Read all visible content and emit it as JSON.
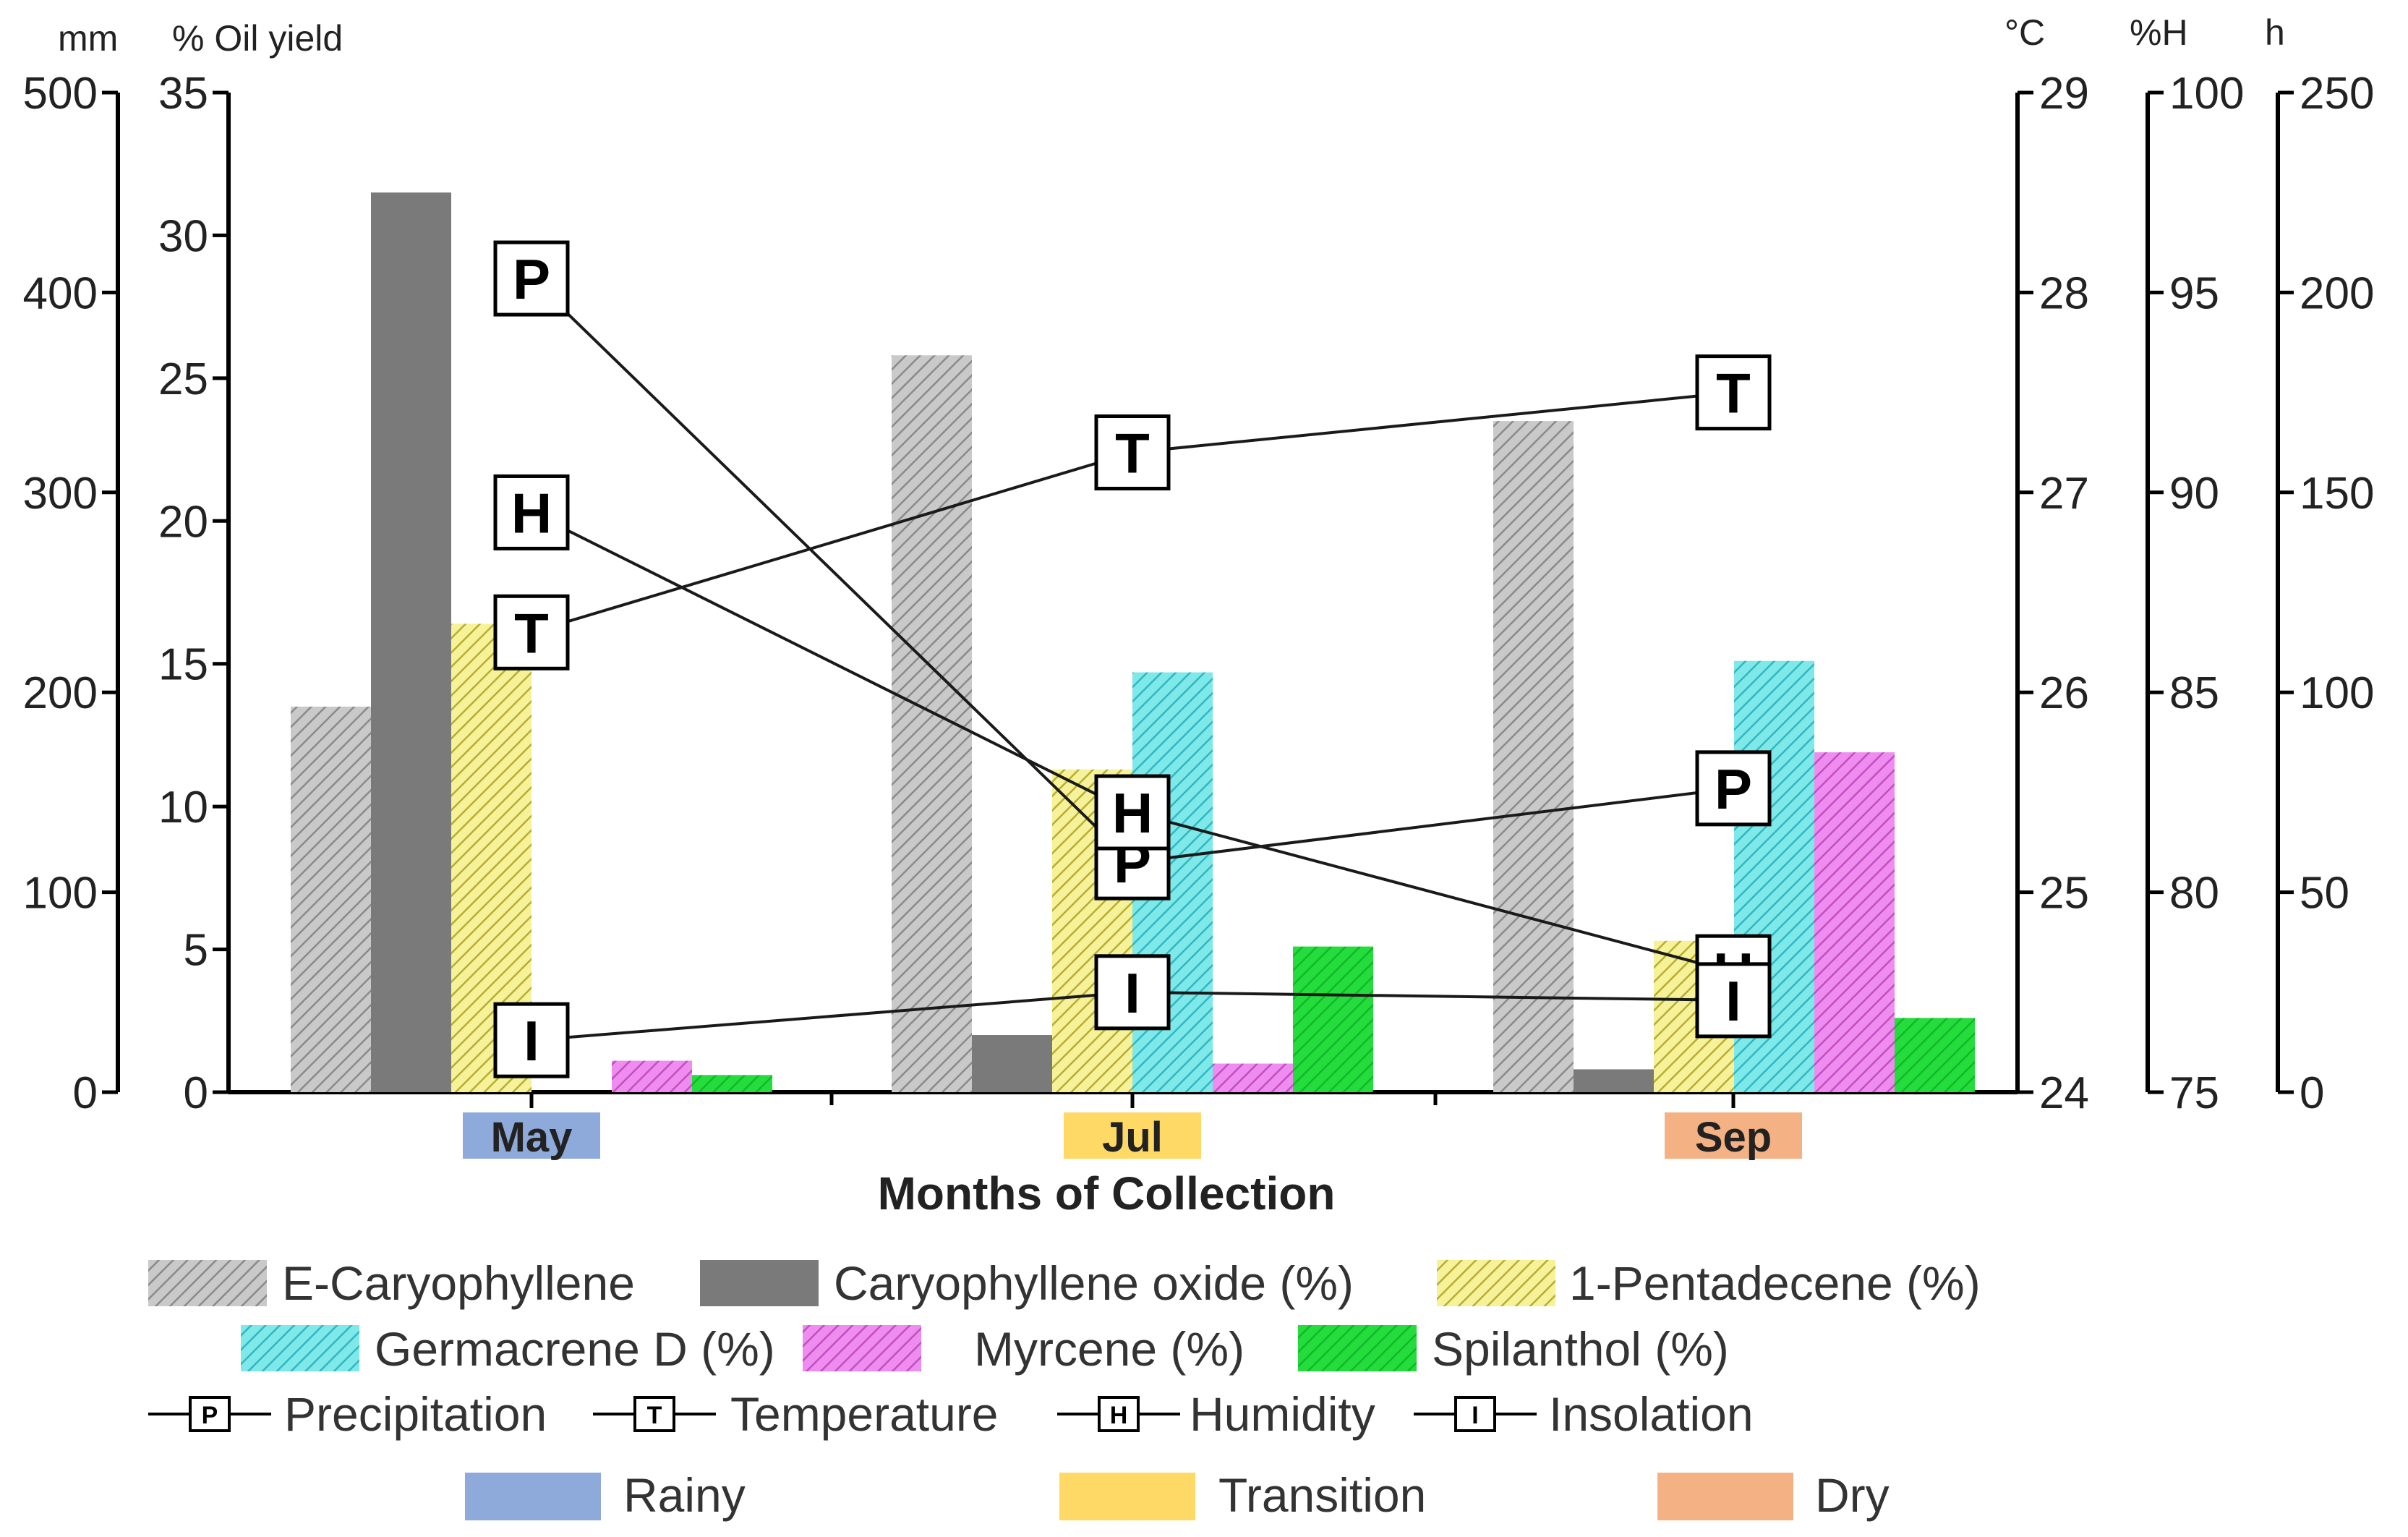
{
  "colors": {
    "E-Caryophyllene": "#b8b8b8",
    "Caryophyllene oxide (%)": "#7a7a7a",
    "1-Pentadecene (%)": "#f4ef8a",
    "Germacrene D (%)": "#6fe6e6",
    "Myrcene (%)": "#e87ee8",
    "Spilanthol (%)": "#22d83a",
    "rainy": "#8eaadb",
    "transition": "#ffd966",
    "dry": "#f4b183"
  },
  "chart_data": {
    "type": "bar",
    "xlabel": "Months of Collection",
    "categories": [
      "May",
      "Jul",
      "Sep"
    ],
    "seasons": [
      "Rainy",
      "Transition",
      "Dry"
    ],
    "series": [
      {
        "name": "E-Caryophyllene",
        "values": [
          13.5,
          25.8,
          23.5
        ]
      },
      {
        "name": "Caryophyllene oxide (%)",
        "values": [
          31.5,
          2.0,
          0.8
        ]
      },
      {
        "name": "1-Pentadecene (%)",
        "values": [
          16.4,
          11.3,
          5.3
        ]
      },
      {
        "name": "Germacrene D (%)",
        "values": [
          0,
          14.7,
          15.1
        ]
      },
      {
        "name": "Myrcene (%)",
        "values": [
          1.1,
          1.0,
          11.9
        ]
      },
      {
        "name": "Spilanthol (%)",
        "values": [
          0.6,
          5.1,
          2.6
        ]
      }
    ],
    "lines": [
      {
        "name": "Precipitation",
        "marker": "P",
        "axis": "mm",
        "values": [
          407,
          115,
          152
        ]
      },
      {
        "name": "Temperature",
        "marker": "T",
        "axis": "°C",
        "values": [
          26.3,
          27.2,
          27.5
        ]
      },
      {
        "name": "Humidity",
        "marker": "H",
        "axis": "%H",
        "values": [
          89.5,
          82.0,
          78.0
        ]
      },
      {
        "name": "Insolation",
        "marker": "I",
        "axis": "h",
        "values": [
          13,
          25,
          23
        ]
      }
    ],
    "axes": {
      "mm": {
        "label": "mm",
        "range": [
          0,
          500
        ],
        "ticks": [
          "0",
          "100",
          "200",
          "300",
          "400",
          "500"
        ]
      },
      "oil": {
        "label": "% Oil yield",
        "range": [
          0,
          35
        ],
        "ticks": [
          "0",
          "5",
          "10",
          "15",
          "20",
          "25",
          "30",
          "35"
        ]
      },
      "temp": {
        "label": "°C",
        "range": [
          24,
          29
        ],
        "ticks": [
          "24",
          "25",
          "26",
          "27",
          "28",
          "29"
        ]
      },
      "hum": {
        "label": "%H",
        "range": [
          75,
          100
        ],
        "ticks": [
          "75",
          "80",
          "85",
          "90",
          "95",
          "100"
        ]
      },
      "ins": {
        "label": "h",
        "range": [
          0,
          250
        ],
        "ticks": [
          "0",
          "50",
          "100",
          "150",
          "200",
          "250"
        ]
      }
    },
    "legend": {
      "bars": [
        "E-Caryophyllene",
        "Caryophyllene oxide (%)",
        "1-Pentadecene (%)",
        "Germacrene D (%)",
        "Myrcene (%)",
        "Spilanthol (%)"
      ],
      "lines": [
        "Precipitation",
        "Temperature",
        "Humidity",
        "Insolation"
      ],
      "seasons": [
        "Rainy",
        "Transition",
        "Dry"
      ],
      "placement": "bottom"
    }
  }
}
